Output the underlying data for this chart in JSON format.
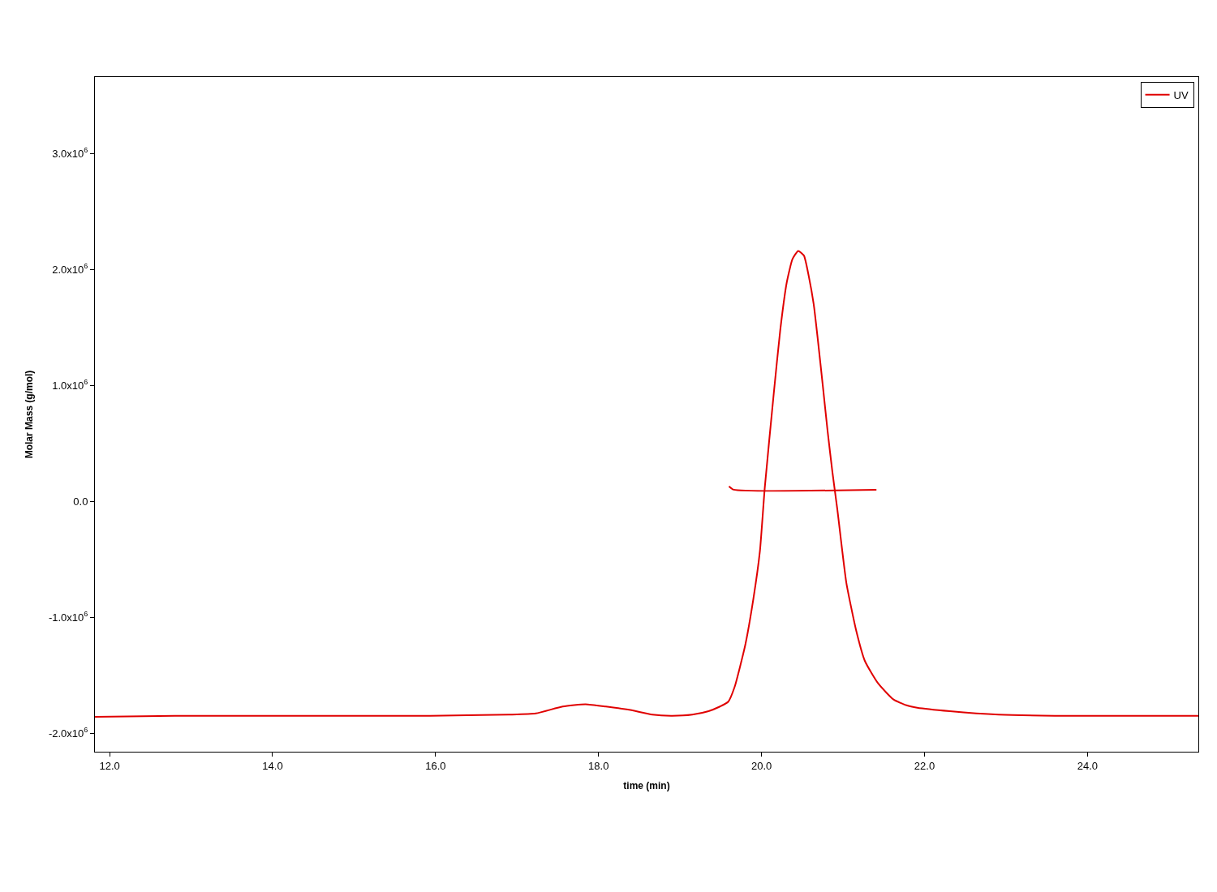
{
  "chart_data": {
    "type": "line",
    "xlabel": "time (min)",
    "ylabel": "Molar Mass (g/mol)",
    "xlim": [
      11.82,
      25.36
    ],
    "xticks": [
      {
        "value": 12,
        "label": "12.0"
      },
      {
        "value": 14,
        "label": "14.0"
      },
      {
        "value": 16,
        "label": "16.0"
      },
      {
        "value": 18,
        "label": "18.0"
      },
      {
        "value": 20,
        "label": "20.0"
      },
      {
        "value": 22,
        "label": "22.0"
      },
      {
        "value": 24,
        "label": "24.0"
      }
    ],
    "ylim": [
      -2160000,
      3660000
    ],
    "yticks": [
      {
        "value": -2000000,
        "label": "-2.0x10$^{6}$"
      },
      {
        "value": -1000000,
        "label": "-1.0x10$^{6}$"
      },
      {
        "value": 0,
        "label": "0.0"
      },
      {
        "value": 1000000,
        "label": "1.0x10$^{6}$"
      },
      {
        "value": 2000000,
        "label": "2.0x10$^{6}$"
      },
      {
        "value": 3000000,
        "label": "3.0x10$^{6}$"
      }
    ],
    "legend": "top right",
    "line_style": "solid",
    "series": [
      {
        "name": "UV",
        "color": "#e00000",
        "x": [
          11.82,
          12.8,
          15.93,
          16.9,
          17.23,
          17.56,
          17.84,
          18.09,
          18.39,
          18.66,
          18.89,
          19.15,
          19.35,
          19.49,
          19.59,
          19.67,
          19.8,
          19.9,
          19.98,
          20.04,
          20.15,
          20.23,
          20.31,
          20.38,
          20.45,
          20.52,
          20.58,
          20.64,
          20.69,
          20.75,
          20.81,
          20.87,
          20.93,
          21.04,
          21.16,
          21.27,
          21.43,
          21.62,
          21.78,
          21.91,
          22.31,
          22.91,
          23.6,
          25.36
        ],
        "values": [
          -1860000,
          -1850000,
          -1850000,
          -1840000,
          -1830000,
          -1770000,
          -1750000,
          -1770000,
          -1800000,
          -1840000,
          -1850000,
          -1840000,
          -1810000,
          -1770000,
          -1730000,
          -1600000,
          -1240000,
          -840000,
          -430000,
          120000,
          930000,
          1480000,
          1890000,
          2090000,
          2160000,
          2120000,
          1940000,
          1700000,
          1400000,
          1010000,
          610000,
          250000,
          -70000,
          -700000,
          -1110000,
          -1380000,
          -1570000,
          -1710000,
          -1760000,
          -1780000,
          -1810000,
          -1840000,
          -1850000,
          -1850000
        ]
      },
      {
        "color": "#e00000",
        "x": [
          19.6,
          19.66,
          21.41
        ],
        "values": [
          130000,
          100000,
          100000
        ]
      }
    ]
  }
}
